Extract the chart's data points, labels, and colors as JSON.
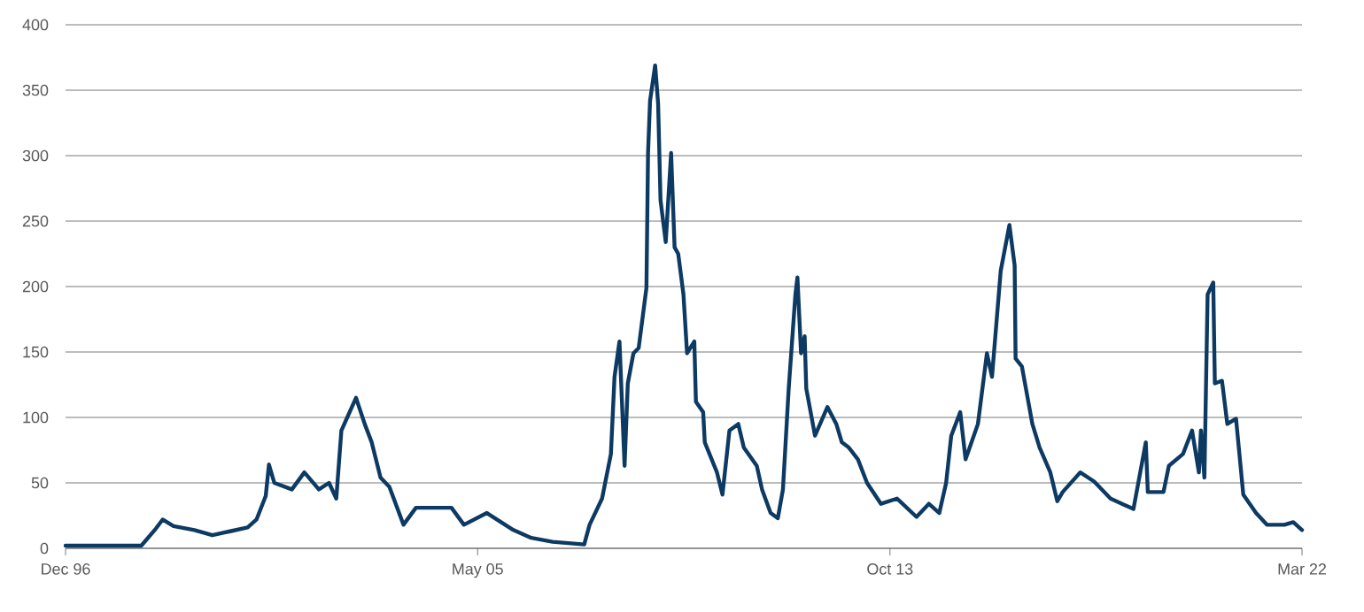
{
  "chart_data": {
    "type": "line",
    "x": [
      "1996-12-01",
      "1998-06-19",
      "1998-10-05",
      "1998-11-25",
      "1999-02-14",
      "1999-07-20",
      "1999-12-01",
      "2000-04-11",
      "2000-08-20",
      "2000-10-25",
      "2001-01-02",
      "2001-01-26",
      "2001-03-07",
      "2001-07-16",
      "2001-10-17",
      "2002-02-02",
      "2002-04-19",
      "2002-06-12",
      "2002-07-20",
      "2002-11-06",
      "2003-01-10",
      "2003-03-03",
      "2003-05-08",
      "2003-07-13",
      "2003-10-26",
      "2004-01-27",
      "2004-10-18",
      "2005-01-19",
      "2005-07-09",
      "2006-01-23",
      "2006-06-05",
      "2006-11-11",
      "2007-07-05",
      "2007-08-14",
      "2007-11-15",
      "2008-01-20",
      "2008-02-16",
      "2008-03-24",
      "2008-05-01",
      "2008-05-25",
      "2008-07-06",
      "2008-08-14",
      "2008-10-11",
      "2008-10-23",
      "2008-11-07",
      "2008-12-15",
      "2009-01-06",
      "2009-01-24",
      "2009-03-04",
      "2009-04-13",
      "2009-05-09",
      "2009-06-05",
      "2009-07-14",
      "2009-08-10",
      "2009-10-03",
      "2009-10-15",
      "2009-12-08",
      "2009-12-20",
      "2010-03-21",
      "2010-05-01",
      "2010-06-22",
      "2010-08-27",
      "2010-10-07",
      "2011-01-12",
      "2011-02-20",
      "2011-04-25",
      "2011-06-18",
      "2011-07-26",
      "2011-09-07",
      "2011-10-27",
      "2011-11-11",
      "2011-12-08",
      "2012-01-04",
      "2012-01-16",
      "2012-03-21",
      "2012-06-22",
      "2012-08-27",
      "2012-10-07",
      "2012-11-28",
      "2013-02-04",
      "2013-04-13",
      "2013-07-26",
      "2013-11-23",
      "2014-04-17",
      "2014-07-18",
      "2014-10-04",
      "2014-11-24",
      "2015-01-01",
      "2015-03-09",
      "2015-04-18",
      "2015-07-19",
      "2015-09-24",
      "2015-11-01",
      "2016-01-05",
      "2016-03-10",
      "2016-04-18",
      "2016-04-25",
      "2016-06-11",
      "2016-08-28",
      "2016-10-21",
      "2017-01-09",
      "2017-03-02",
      "2017-04-11",
      "2017-08-20",
      "2017-12-02",
      "2018-04-03",
      "2018-09-21",
      "2018-12-22",
      "2019-01-06",
      "2019-05-03",
      "2019-06-12",
      "2019-09-25",
      "2019-12-02",
      "2020-01-22",
      "2020-02-06",
      "2020-03-03",
      "2020-03-27",
      "2020-05-08",
      "2020-05-20",
      "2020-07-12",
      "2020-08-21",
      "2020-10-25",
      "2020-12-18",
      "2021-03-23",
      "2021-06-12",
      "2021-10-21",
      "2021-12-26",
      "2022-03-01"
    ],
    "series": [
      {
        "color": "#0d3a63",
        "values": [
          2,
          2,
          15,
          22,
          17,
          14,
          10,
          13,
          16,
          22,
          40,
          64,
          50,
          45,
          58,
          45,
          50,
          38,
          90,
          115,
          95,
          81,
          54,
          47,
          18,
          31,
          31,
          18,
          27,
          14,
          8,
          5,
          3,
          18,
          38,
          72,
          131,
          158,
          63,
          126,
          149,
          153,
          199,
          302,
          342,
          369,
          340,
          266,
          234,
          302,
          230,
          225,
          194,
          149,
          158,
          112,
          104,
          81,
          58,
          41,
          90,
          95,
          77,
          63,
          45,
          27,
          23,
          45,
          122,
          194,
          207,
          149,
          162,
          122,
          86,
          108,
          95,
          81,
          77,
          68,
          50,
          34,
          38,
          24,
          34,
          27,
          50,
          86,
          104,
          68,
          95,
          149,
          131,
          212,
          247,
          216,
          145,
          139,
          95,
          77,
          58,
          36,
          43,
          58,
          51,
          38,
          30,
          81,
          43,
          43,
          63,
          72,
          90,
          58,
          90,
          54,
          194,
          203,
          126,
          128,
          95,
          99,
          41,
          27,
          18,
          18,
          20,
          14
        ]
      }
    ],
    "xlim": [
      "1996-12-01",
      "2022-03-01"
    ],
    "ylim": [
      0,
      400
    ],
    "xticks": [
      {
        "value": "1996-12-01",
        "label": "Dec 96"
      },
      {
        "value": "2005-05-01",
        "label": "May 05"
      },
      {
        "value": "2013-10-01",
        "label": "Oct 13"
      },
      {
        "value": "2022-03-01",
        "label": "Mar 22"
      }
    ],
    "yticks": [
      0,
      50,
      100,
      150,
      200,
      250,
      300,
      350,
      400
    ],
    "grid": "y",
    "line_style": "solid"
  }
}
